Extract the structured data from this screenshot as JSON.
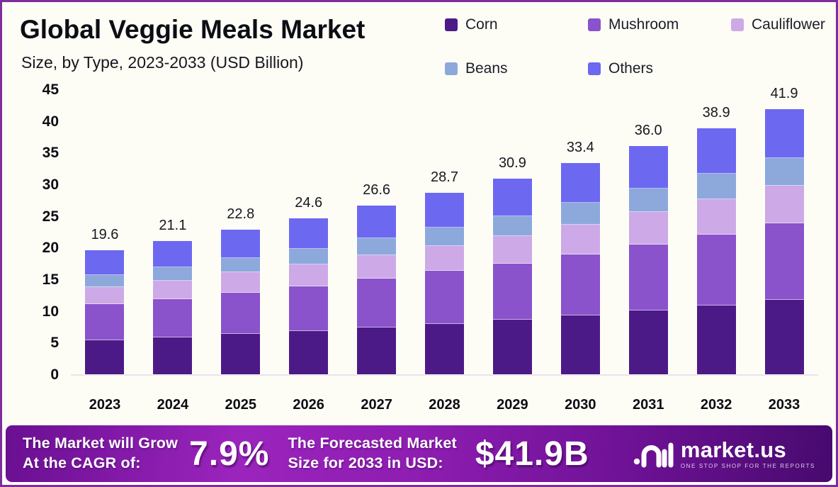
{
  "title": "Global Veggie Meals Market",
  "subtitle": "Size, by Type, 2023-2033 (USD Billion)",
  "chart_data": {
    "type": "bar",
    "stacked": true,
    "title": "Global Veggie Meals Market Size, by Type, 2023-2033 (USD Billion)",
    "xlabel": "",
    "ylabel": "",
    "ylim": [
      0,
      45
    ],
    "y_ticks": [
      45,
      40,
      35,
      30,
      25,
      20,
      15,
      10,
      5,
      0
    ],
    "grid": false,
    "legend_position": "top-right",
    "categories": [
      "2023",
      "2024",
      "2025",
      "2026",
      "2027",
      "2028",
      "2029",
      "2030",
      "2031",
      "2032",
      "2033"
    ],
    "series": [
      {
        "name": "Corn",
        "color": "#4c1a86",
        "values": [
          5.4,
          5.8,
          6.4,
          6.8,
          7.4,
          8.0,
          8.6,
          9.3,
          10.1,
          10.9,
          11.8
        ]
      },
      {
        "name": "Mushroom",
        "color": "#8a52cb",
        "values": [
          5.7,
          6.1,
          6.5,
          7.1,
          7.7,
          8.3,
          8.9,
          9.6,
          10.4,
          11.2,
          12.1
        ]
      },
      {
        "name": "Cauliflower",
        "color": "#cda9e7",
        "values": [
          2.7,
          2.9,
          3.2,
          3.4,
          3.7,
          4.0,
          4.3,
          4.7,
          5.1,
          5.5,
          5.9
        ]
      },
      {
        "name": "Beans",
        "color": "#8da8db",
        "values": [
          1.9,
          2.1,
          2.3,
          2.5,
          2.7,
          2.9,
          3.2,
          3.5,
          3.7,
          4.1,
          4.4
        ]
      },
      {
        "name": "Others",
        "color": "#6c68f0",
        "values": [
          3.9,
          4.2,
          4.4,
          4.8,
          5.1,
          5.5,
          5.9,
          6.3,
          6.7,
          7.2,
          7.7
        ]
      }
    ],
    "totals": [
      "19.6",
      "21.1",
      "22.8",
      "24.6",
      "26.6",
      "28.7",
      "30.9",
      "33.4",
      "36.0",
      "38.9",
      "41.9"
    ]
  },
  "footer": {
    "cagr_line1": "The Market will Grow",
    "cagr_line2": "At the CAGR of:",
    "cagr_value": "7.9%",
    "forecast_line1": "The Forecasted Market",
    "forecast_line2": "Size for 2033 in USD:",
    "forecast_value": "$41.9B",
    "logo_text": "market.us",
    "logo_tagline": "ONE STOP SHOP FOR THE REPORTS"
  },
  "colors": {
    "page_border": "#7e2d9c",
    "background": "#fdfdf6",
    "banner_gradient": [
      "#6a0f92",
      "#9b24bd",
      "#470a6e"
    ],
    "axis_line": "#e6e3ee",
    "text": "#0d0d14"
  }
}
